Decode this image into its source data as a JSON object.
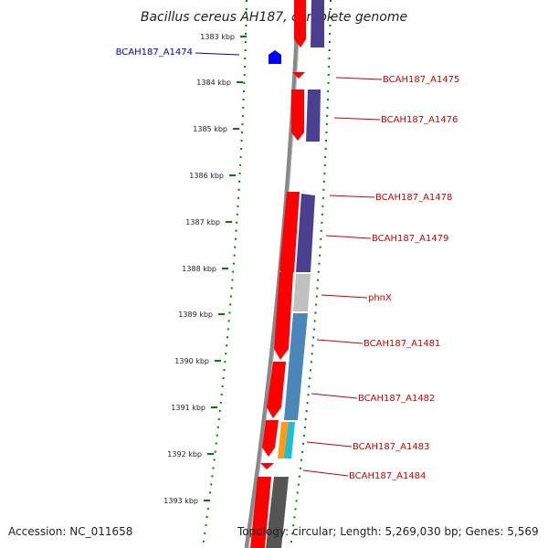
{
  "title": "Bacillus cereus AH187, complete genome",
  "footer": {
    "accession": "Accession: NC_011658",
    "topology": "Topology: circular; Length: 5,269,030 bp; Genes: 5,569"
  },
  "colors": {
    "gene_forward": "#ff0000",
    "gene_reverse": "#0000ff",
    "label_forward": "#cc0000",
    "label_reverse": "#0000cc",
    "tick": "#008000",
    "backbone": "#888888",
    "cog_purple": "#4b3f8f",
    "cog_gray": "#c0c0c0",
    "cog_steelblue": "#4a86b8",
    "cog_orange": "#ff9a1a",
    "cog_cyan": "#18c0d8",
    "cog_dark": "#555555"
  },
  "axis": {
    "ticks": [
      "1383 kbp",
      "1384 kbp",
      "1385 kbp",
      "1386 kbp",
      "1387 kbp",
      "1388 kbp",
      "1389 kbp",
      "1390 kbp",
      "1391 kbp",
      "1392 kbp",
      "1393 kbp"
    ]
  },
  "gene_labels": [
    {
      "name": "BCAH187_A1474",
      "strand": "reverse"
    },
    {
      "name": "BCAH187_A1475",
      "strand": "forward"
    },
    {
      "name": "BCAH187_A1476",
      "strand": "forward"
    },
    {
      "name": "BCAH187_A1478",
      "strand": "forward"
    },
    {
      "name": "BCAH187_A1479",
      "strand": "forward"
    },
    {
      "name": "phnX",
      "strand": "forward"
    },
    {
      "name": "BCAH187_A1481",
      "strand": "forward"
    },
    {
      "name": "BCAH187_A1482",
      "strand": "forward"
    },
    {
      "name": "BCAH187_A1483",
      "strand": "forward"
    },
    {
      "name": "BCAH187_A1484",
      "strand": "forward"
    }
  ]
}
